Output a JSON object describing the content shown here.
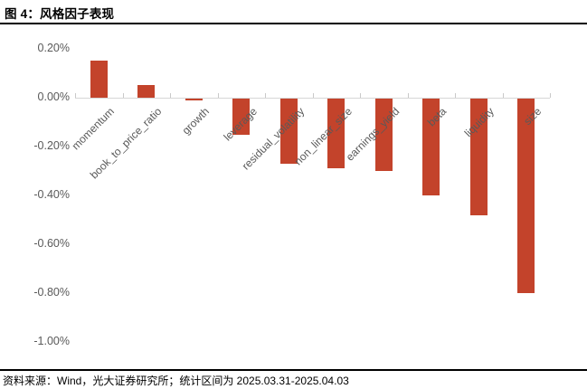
{
  "title": "图 4：风格因子表现",
  "footer": {
    "source": "资料来源：Wind，光大证券研究所；统计区间为 2025.03.31-2025.04.03"
  },
  "chart_data": {
    "type": "bar",
    "title": "图 4：风格因子表现",
    "categories": [
      "momentum",
      "book_to_price_ratio",
      "growth",
      "leverage",
      "residual_volatility",
      "non_linear_size",
      "earnings_yield",
      "beta",
      "liquidity",
      "size"
    ],
    "values": [
      0.15,
      0.05,
      -0.01,
      -0.15,
      -0.27,
      -0.29,
      -0.3,
      -0.4,
      -0.48,
      -0.8
    ],
    "unit": "%",
    "xlabel": "",
    "ylabel": "",
    "ylim": [
      -1.0,
      0.2
    ],
    "ytick_values": [
      0.2,
      0.0,
      -0.2,
      -0.4,
      -0.6,
      -0.8,
      -1.0
    ],
    "ytick_labels": [
      "0.20%",
      "0.00%",
      "-0.20%",
      "-0.40%",
      "-0.60%",
      "-0.80%",
      "-1.00%"
    ],
    "grid": false,
    "legend": null,
    "bar_color": "#c3432b",
    "axis_color": "#d6d6d6",
    "tick_label_color": "#595959"
  }
}
